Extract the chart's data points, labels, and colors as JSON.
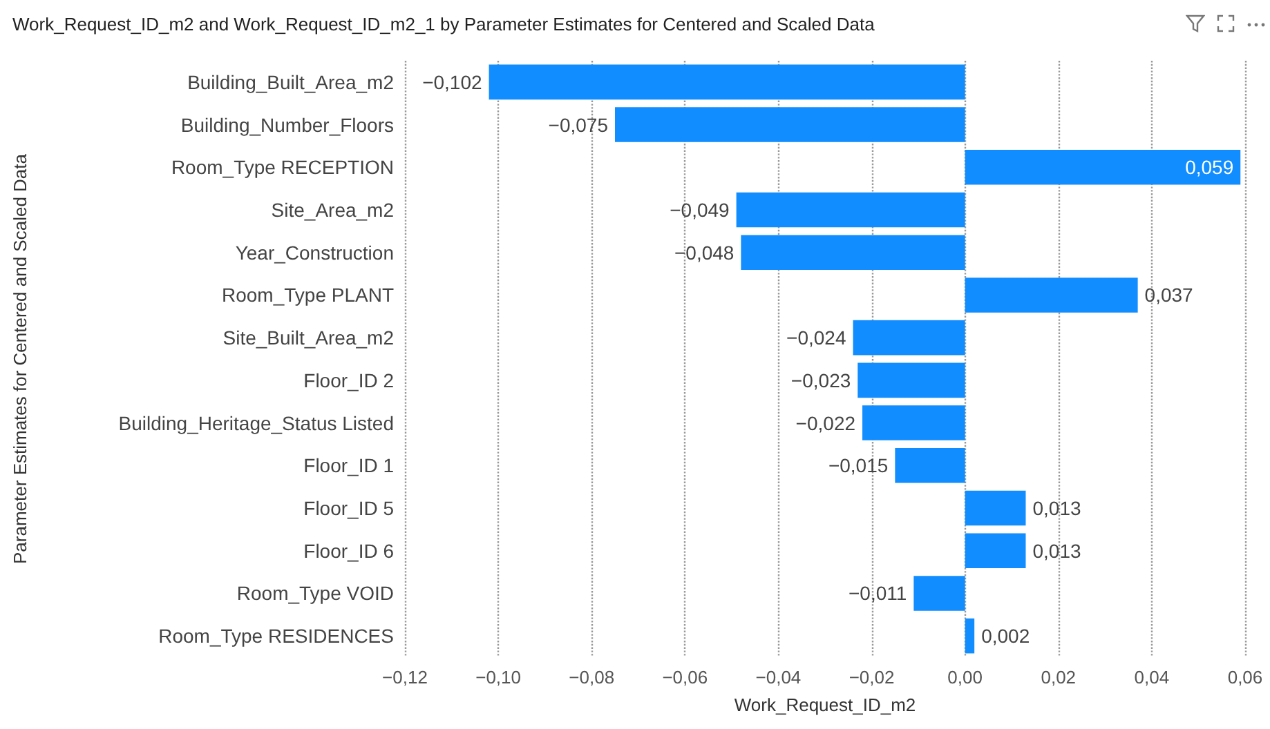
{
  "chart_data": {
    "type": "bar",
    "orientation": "horizontal",
    "title": "Work_Request_ID_m2 and Work_Request_ID_m2_1 by Parameter Estimates for Centered and Scaled Data",
    "xlabel": "Work_Request_ID_m2",
    "ylabel": "Parameter Estimates for Centered and Scaled Data",
    "categories": [
      "Building_Built_Area_m2",
      "Building_Number_Floors",
      "Room_Type RECEPTION",
      "Site_Area_m2",
      "Year_Construction",
      "Room_Type PLANT",
      "Site_Built_Area_m2",
      "Floor_ID 2",
      "Building_Heritage_Status Listed",
      "Floor_ID 1",
      "Floor_ID 5",
      "Floor_ID 6",
      "Room_Type VOID",
      "Room_Type RESIDENCES"
    ],
    "values": [
      -0.102,
      -0.075,
      0.059,
      -0.049,
      -0.048,
      0.037,
      -0.024,
      -0.023,
      -0.022,
      -0.015,
      0.013,
      0.013,
      -0.011,
      0.002
    ],
    "value_labels": [
      "−0,102",
      "−0,075",
      "0,059",
      "−0,049",
      "−0,048",
      "0,037",
      "−0,024",
      "−0,023",
      "−0,022",
      "−0,015",
      "0,013",
      "0,013",
      "−0,011",
      "0,002"
    ],
    "color": "#118dff",
    "xlim": [
      -0.12,
      0.06
    ],
    "xticks": [
      {
        "value": -0.12,
        "label": "−0,12"
      },
      {
        "value": -0.1,
        "label": "−0,10"
      },
      {
        "value": -0.08,
        "label": "−0,08"
      },
      {
        "value": -0.06,
        "label": "−0,06"
      },
      {
        "value": -0.04,
        "label": "−0,04"
      },
      {
        "value": -0.02,
        "label": "−0,02"
      },
      {
        "value": 0,
        "label": "0,00"
      },
      {
        "value": 0.02,
        "label": "0,02"
      },
      {
        "value": 0.04,
        "label": "0,04"
      },
      {
        "value": 0.06,
        "label": "0,06"
      }
    ],
    "grid": "x"
  }
}
